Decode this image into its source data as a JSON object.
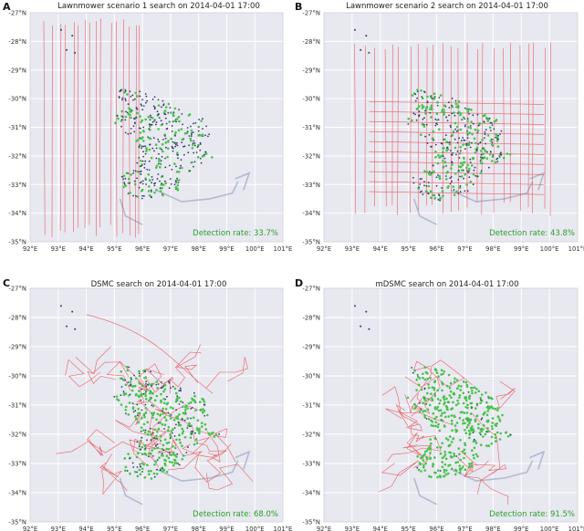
{
  "figure": {
    "panels": [
      {
        "letter": "A",
        "title": "Lawnmower scenario 1 search on 2014-04-01 17:00",
        "detection": "Detection rate: 33.7%"
      },
      {
        "letter": "B",
        "title": "Lawnmower scenario 2 search on 2014-04-01 17:00",
        "detection": "Detection rate: 43.8%"
      },
      {
        "letter": "C",
        "title": "DSMC search on 2014-04-01 17:00",
        "detection": "Detection rate: 68.0%"
      },
      {
        "letter": "D",
        "title": "mDSMC search on 2014-04-01 17:00",
        "detection": "Detection rate: 91.5%"
      }
    ]
  },
  "chart_data": [
    {
      "type": "scatter",
      "title": "Lawnmower scenario 1 search on 2014-04-01 17:00",
      "xlim": [
        92,
        101
      ],
      "ylim": [
        -35,
        -27
      ],
      "x_ticks": [
        "92°E",
        "93°E",
        "94°E",
        "95°E",
        "96°E",
        "97°E",
        "98°E",
        "99°E",
        "100°E",
        "101°E"
      ],
      "y_ticks": [
        "-27°N",
        "-28°N",
        "-29°N",
        "-30°N",
        "-31°N",
        "-32°N",
        "-33°N",
        "-34°N",
        "-35°N"
      ],
      "grid": true,
      "annotation": "Detection rate: 33.7%",
      "detection_rate": 33.7,
      "search_pattern": "lawnmower",
      "colors": {
        "search_track": "#e8474a",
        "drift_particles": "#2c3e66",
        "detected": "#46c24a",
        "background": "#e8e8f0"
      }
    },
    {
      "type": "scatter",
      "title": "Lawnmower scenario 2 search on 2014-04-01 17:00",
      "xlim": [
        92,
        101
      ],
      "ylim": [
        -35,
        -27
      ],
      "x_ticks": [
        "92°E",
        "93°E",
        "94°E",
        "95°E",
        "96°E",
        "97°E",
        "98°E",
        "99°E",
        "100°E",
        "101°E"
      ],
      "y_ticks": [
        "-27°N",
        "-28°N",
        "-29°N",
        "-30°N",
        "-31°N",
        "-32°N",
        "-33°N",
        "-34°N",
        "-35°N"
      ],
      "grid": true,
      "annotation": "Detection rate: 43.8%",
      "detection_rate": 43.8,
      "search_pattern": "lawnmower",
      "colors": {
        "search_track": "#e8474a",
        "drift_particles": "#2c3e66",
        "detected": "#46c24a",
        "background": "#e8e8f0"
      }
    },
    {
      "type": "scatter",
      "title": "DSMC search on 2014-04-01 17:00",
      "xlim": [
        92,
        101
      ],
      "ylim": [
        -35,
        -27
      ],
      "x_ticks": [
        "92°E",
        "93°E",
        "94°E",
        "95°E",
        "96°E",
        "97°E",
        "98°E",
        "99°E",
        "100°E",
        "101°E"
      ],
      "y_ticks": [
        "-27°N",
        "-28°N",
        "-29°N",
        "-30°N",
        "-31°N",
        "-32°N",
        "-33°N",
        "-34°N",
        "-35°N"
      ],
      "grid": true,
      "annotation": "Detection rate: 68.0%",
      "detection_rate": 68.0,
      "search_pattern": "dsmc",
      "colors": {
        "search_track": "#e8474a",
        "drift_particles": "#2c3e66",
        "detected": "#46c24a",
        "background": "#e8e8f0"
      }
    },
    {
      "type": "scatter",
      "title": "mDSMC search on 2014-04-01 17:00",
      "xlim": [
        92,
        101
      ],
      "ylim": [
        -35,
        -27
      ],
      "x_ticks": [
        "92°E",
        "93°E",
        "94°E",
        "95°E",
        "96°E",
        "97°E",
        "98°E",
        "99°E",
        "100°E",
        "101°E"
      ],
      "y_ticks": [
        "-27°N",
        "-28°N",
        "-29°N",
        "-30°N",
        "-31°N",
        "-32°N",
        "-33°N",
        "-34°N",
        "-35°N"
      ],
      "grid": true,
      "annotation": "Detection rate: 91.5%",
      "detection_rate": 91.5,
      "search_pattern": "mdsmc",
      "colors": {
        "search_track": "#e8474a",
        "drift_particles": "#2c3e66",
        "detected": "#46c24a",
        "background": "#e8e8f0"
      }
    }
  ]
}
